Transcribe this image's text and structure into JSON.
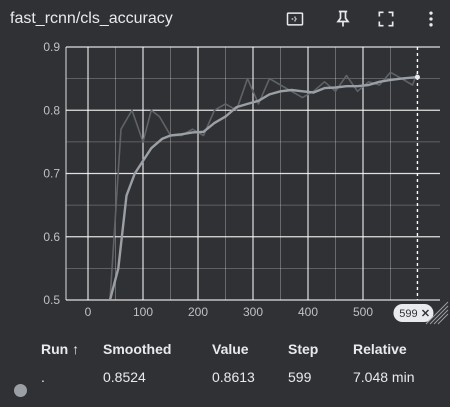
{
  "header": {
    "title": "fast_rcnn/cls_accuracy"
  },
  "chart_data": {
    "type": "line",
    "title": "",
    "xlabel": "",
    "ylabel": "",
    "x_ticks": [
      "0",
      "100",
      "200",
      "300",
      "400",
      "500"
    ],
    "y_ticks": [
      "0.5",
      "0.6",
      "0.7",
      "0.8",
      "0.9"
    ],
    "xlim": [
      -40,
      640
    ],
    "ylim": [
      0.5,
      0.9
    ],
    "grid": true,
    "hover_step_label": "599",
    "series": [
      {
        "role": "raw",
        "color": "#5f6368",
        "x": [
          40,
          60,
          80,
          100,
          115,
          130,
          150,
          170,
          190,
          210,
          230,
          250,
          270,
          290,
          310,
          330,
          350,
          370,
          390,
          410,
          430,
          450,
          470,
          490,
          510,
          530,
          550,
          570,
          590,
          599
        ],
        "y": [
          0.5,
          0.77,
          0.8,
          0.75,
          0.8,
          0.79,
          0.76,
          0.76,
          0.77,
          0.76,
          0.8,
          0.81,
          0.8,
          0.85,
          0.81,
          0.85,
          0.84,
          0.83,
          0.82,
          0.83,
          0.845,
          0.83,
          0.855,
          0.83,
          0.845,
          0.84,
          0.86,
          0.85,
          0.84,
          0.86
        ]
      },
      {
        "role": "smoothed",
        "color": "#9aa0a6",
        "x": [
          40,
          55,
          70,
          85,
          100,
          115,
          135,
          150,
          170,
          190,
          210,
          230,
          250,
          270,
          290,
          310,
          330,
          350,
          370,
          390,
          410,
          430,
          450,
          470,
          490,
          510,
          530,
          550,
          570,
          599
        ],
        "y": [
          0.5,
          0.55,
          0.665,
          0.7,
          0.72,
          0.74,
          0.755,
          0.76,
          0.762,
          0.765,
          0.766,
          0.78,
          0.79,
          0.805,
          0.81,
          0.815,
          0.825,
          0.83,
          0.832,
          0.83,
          0.828,
          0.835,
          0.836,
          0.838,
          0.838,
          0.84,
          0.845,
          0.848,
          0.85,
          0.8524
        ]
      }
    ]
  },
  "table": {
    "headers": {
      "run": "Run ↑",
      "smoothed": "Smoothed",
      "value": "Value",
      "step": "Step",
      "relative": "Relative"
    },
    "row": {
      "run": ".",
      "smoothed": "0.8524",
      "value": "0.8613",
      "step": "599",
      "relative": "7.048 min"
    }
  },
  "icons": {
    "fit": "fit-domain-icon",
    "pin": "pin-icon",
    "fullscreen": "fullscreen-icon",
    "more": "more-vert-icon"
  },
  "colors": {
    "background": "#303134",
    "grid": "#ffffff",
    "raw_line": "#5f6368",
    "smoothed_line": "#9aa0a6",
    "run_dot": "#9aa0a6"
  }
}
